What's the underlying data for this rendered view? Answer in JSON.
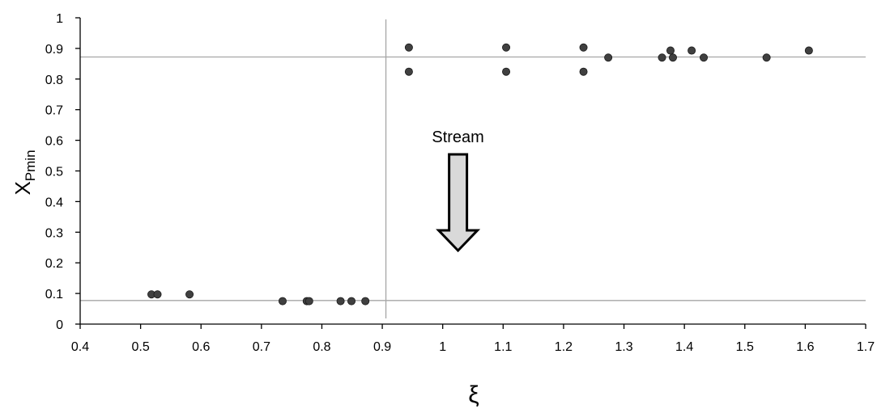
{
  "chart_data": {
    "type": "scatter",
    "title": "",
    "xlabel": "ξ",
    "ylabel": "X",
    "ylabel_subscript": "Pmin",
    "xlim": [
      0.4,
      1.7
    ],
    "ylim": [
      0,
      1
    ],
    "x_ticks": [
      "0.4",
      "0.5",
      "0.6",
      "0.7",
      "0.8",
      "0.9",
      "1",
      "1.1",
      "1.2",
      "1.3",
      "1.4",
      "1.5",
      "1.6",
      "1.7"
    ],
    "y_ticks": [
      "0",
      "0.1",
      "0.2",
      "0.3",
      "0.4",
      "0.5",
      "0.6",
      "0.7",
      "0.8",
      "0.9",
      "1"
    ],
    "grid": false,
    "legend": "none",
    "points": [
      {
        "x": 0.518,
        "y": 0.097
      },
      {
        "x": 0.528,
        "y": 0.097
      },
      {
        "x": 0.581,
        "y": 0.097
      },
      {
        "x": 0.735,
        "y": 0.075
      },
      {
        "x": 0.775,
        "y": 0.075
      },
      {
        "x": 0.779,
        "y": 0.075
      },
      {
        "x": 0.831,
        "y": 0.075
      },
      {
        "x": 0.849,
        "y": 0.075
      },
      {
        "x": 0.872,
        "y": 0.075
      },
      {
        "x": 0.944,
        "y": 0.903
      },
      {
        "x": 0.944,
        "y": 0.824
      },
      {
        "x": 1.105,
        "y": 0.903
      },
      {
        "x": 1.105,
        "y": 0.824
      },
      {
        "x": 1.233,
        "y": 0.903
      },
      {
        "x": 1.233,
        "y": 0.824
      },
      {
        "x": 1.274,
        "y": 0.87
      },
      {
        "x": 1.363,
        "y": 0.87
      },
      {
        "x": 1.377,
        "y": 0.893
      },
      {
        "x": 1.381,
        "y": 0.87
      },
      {
        "x": 1.412,
        "y": 0.893
      },
      {
        "x": 1.432,
        "y": 0.87
      },
      {
        "x": 1.536,
        "y": 0.87
      },
      {
        "x": 1.606,
        "y": 0.893
      }
    ],
    "reference_lines": {
      "horizontal": [
        0.872,
        0.077
      ],
      "vertical": [
        0.906
      ]
    },
    "annotation": {
      "text": "Stream",
      "arrow_x": 1.02,
      "arrow_direction": "down"
    },
    "colors": {
      "marker": "#404040",
      "marker_edge": "#1a1a1a",
      "axis": "#000000",
      "ref_line": "#a6a6a6",
      "arrow_fill": "#d9d9d9"
    }
  }
}
